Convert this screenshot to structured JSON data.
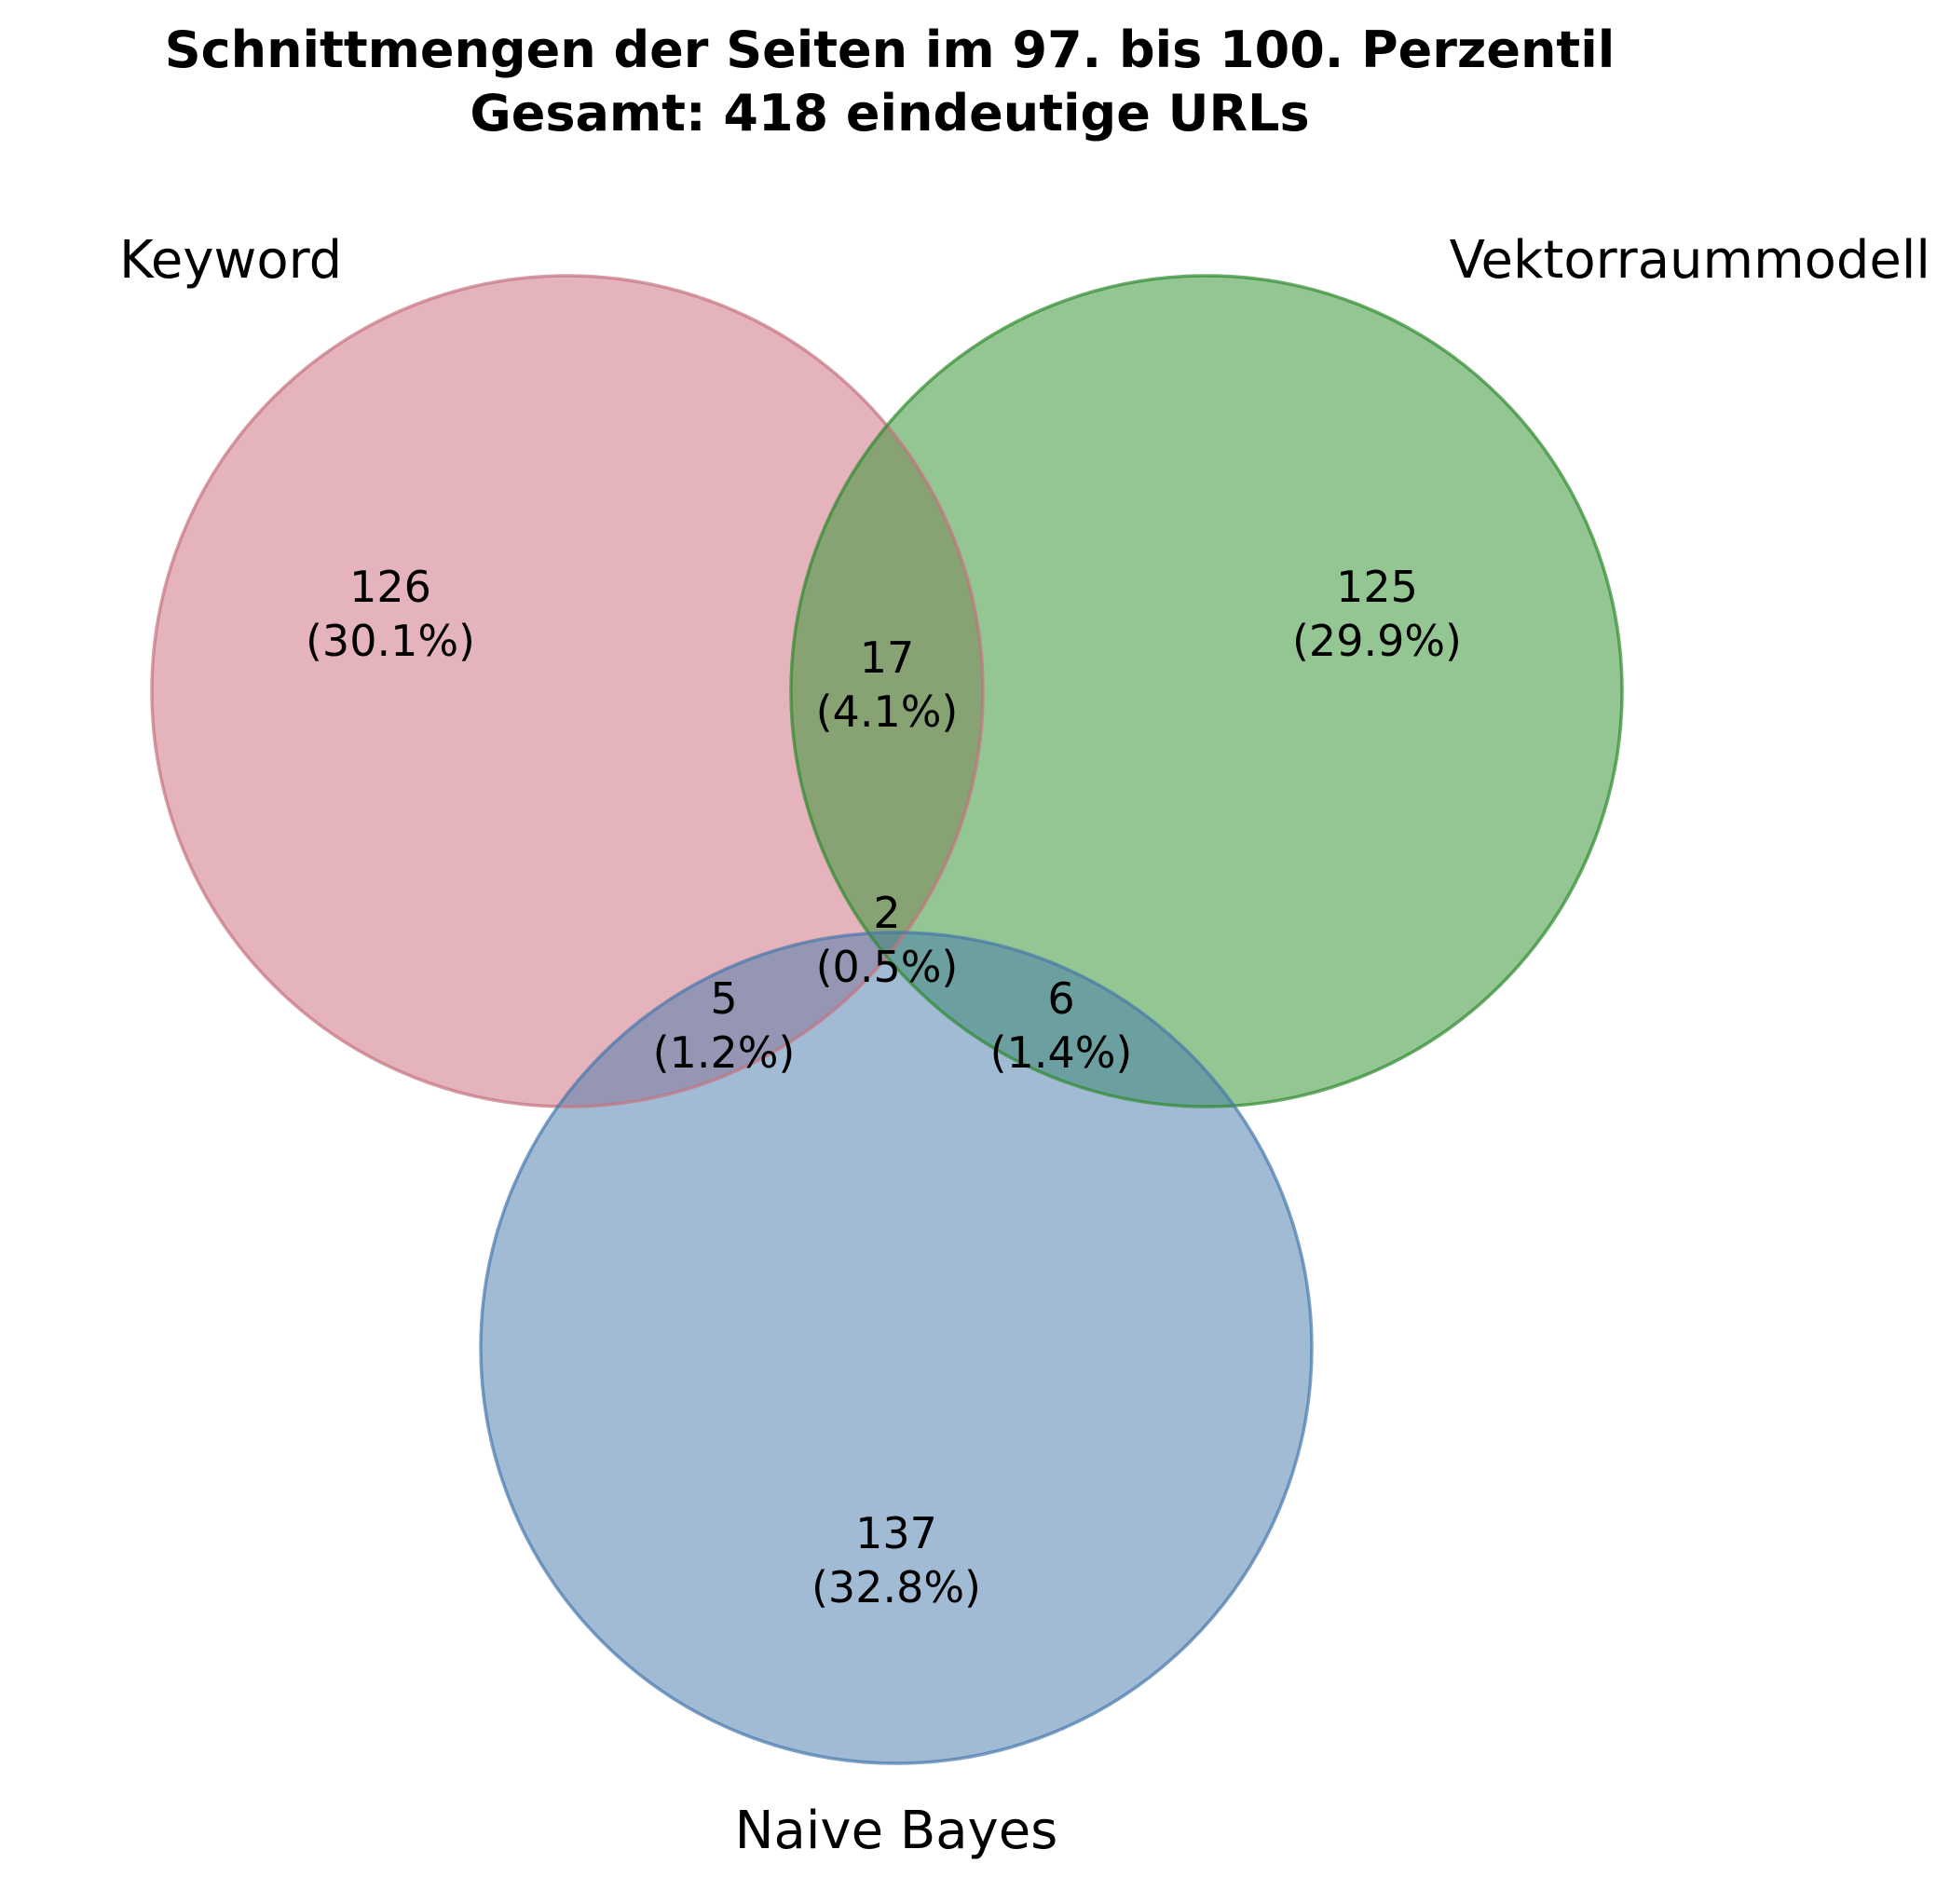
{
  "title_line1": "Schnittmengen der Seiten im 97. bis 100. Perzentil",
  "title_line2": "Gesamt: 418 eindeutige URLs",
  "sets": [
    {
      "id": "keyword",
      "name": "Keyword",
      "fill": "#d4808f",
      "stroke": "#c4737f"
    },
    {
      "id": "vektor",
      "name": "Vektorraummodell",
      "fill": "#2f922f",
      "stroke": "#2d8a2d"
    },
    {
      "id": "bayes",
      "name": "Naive Bayes",
      "fill": "#4677ab",
      "stroke": "#4677ab"
    }
  ],
  "regions": [
    {
      "id": "keyword-only",
      "count": "126",
      "percent": "(30.1%)"
    },
    {
      "id": "vektor-only",
      "count": "125",
      "percent": "(29.9%)"
    },
    {
      "id": "keyword-vektor",
      "count": "17",
      "percent": "(4.1%)"
    },
    {
      "id": "all-three",
      "count": "2",
      "percent": "(0.5%)"
    },
    {
      "id": "keyword-bayes",
      "count": "5",
      "percent": "(1.2%)"
    },
    {
      "id": "vektor-bayes",
      "count": "6",
      "percent": "(1.4%)"
    },
    {
      "id": "bayes-only",
      "count": "137",
      "percent": "(32.8%)"
    }
  ]
}
